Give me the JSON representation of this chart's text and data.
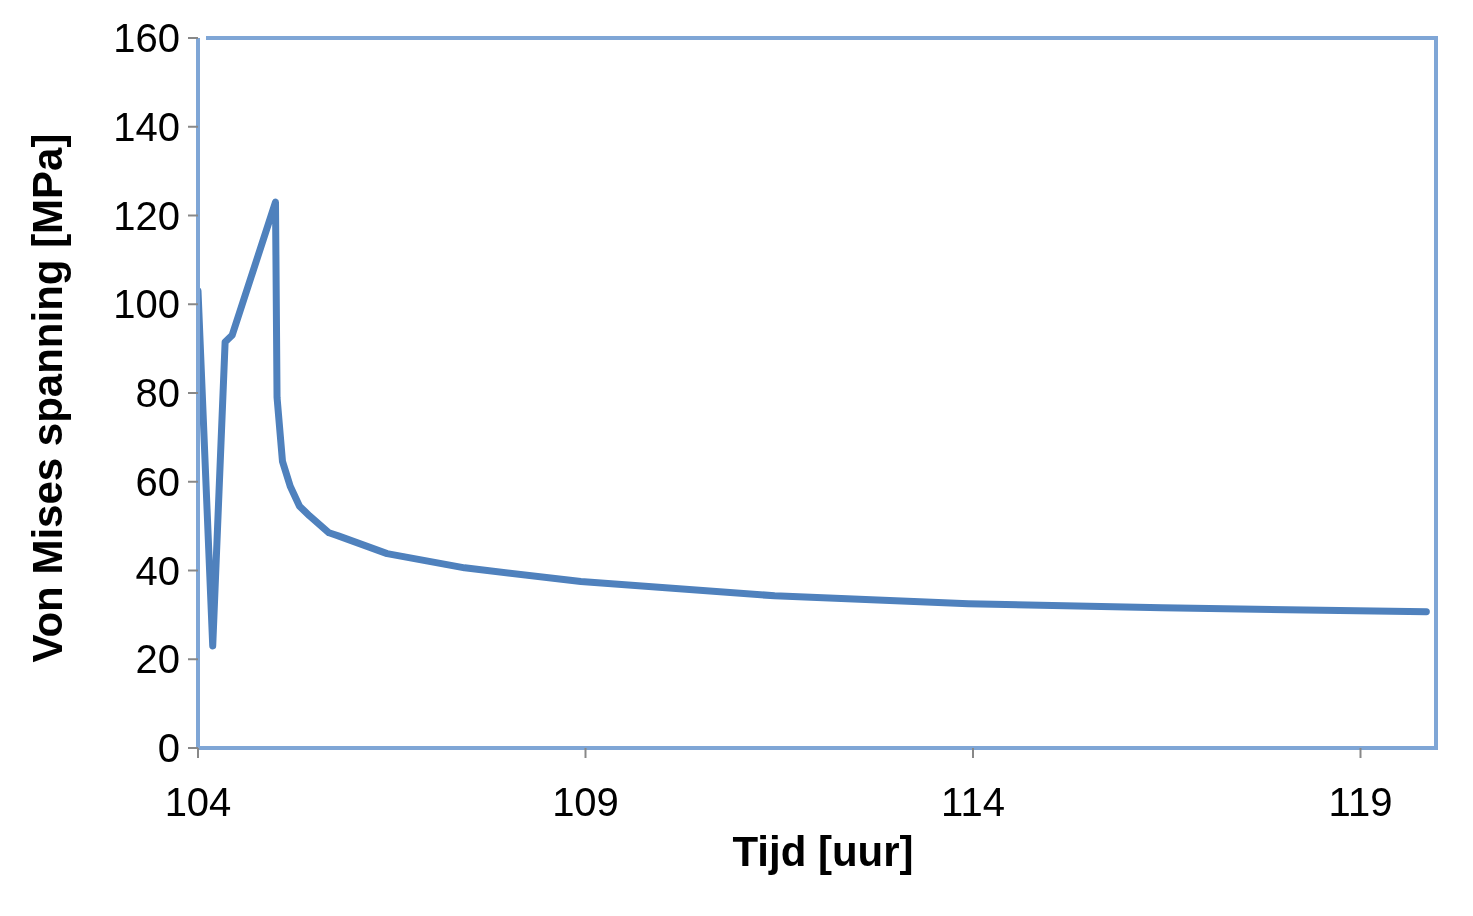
{
  "chart_data": {
    "type": "line",
    "xlabel": "Tijd [uur]",
    "ylabel": "Von Mises spanning [MPa]",
    "series": [
      {
        "color": "#4f81bd",
        "x": [
          104,
          104.19,
          104.35,
          104.44,
          105.0,
          105.02,
          105.09,
          105.19,
          105.31,
          105.44,
          105.69,
          105.81,
          106.44,
          107.44,
          108.94,
          111.44,
          113.94,
          116.44,
          119.85
        ],
        "values": [
          103,
          23,
          91.5,
          93,
          123,
          79,
          64.6,
          59,
          54.5,
          52.3,
          48.5,
          47.8,
          43.8,
          40.6,
          37.5,
          34.3,
          32.5,
          31.6,
          30.7
        ]
      }
    ],
    "xlim": [
      104,
      120
    ],
    "xticks": [
      104,
      109,
      114,
      119
    ],
    "ylim": [
      0,
      160
    ],
    "yticks": [
      0,
      20,
      40,
      60,
      80,
      100,
      120,
      140,
      160
    ],
    "marker": "none",
    "line_style": "solid"
  }
}
